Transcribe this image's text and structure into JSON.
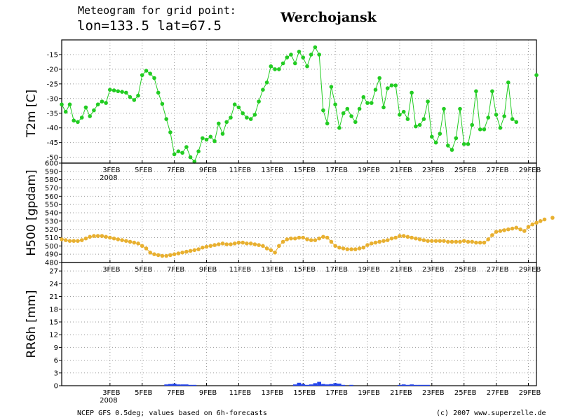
{
  "header": {
    "label": "Meteogram for grid point:",
    "coords": "lon=133.5 lat=67.5",
    "location": "Werchojansk"
  },
  "footer": {
    "source": "NCEP GFS 0.5deg; values based on 6h-forecasts",
    "copyright": "(c) 2007 www.superzelle.de"
  },
  "colors": {
    "temperature": "#22cc22",
    "geopotential": "#e8b030",
    "precipitation": "#2244ee",
    "grid": "#999999"
  },
  "chart_data": [
    {
      "type": "line",
      "ylabel": "T2m [C]",
      "ylim": [
        -52,
        -10
      ],
      "yticks": [
        -50,
        -45,
        -40,
        -35,
        -30,
        -25,
        -20,
        -15
      ],
      "xlim": [
        0,
        118
      ],
      "xticks": [
        {
          "x": 12,
          "label": "3FEB"
        },
        {
          "x": 20,
          "label": "5FEB"
        },
        {
          "x": 28,
          "label": "7FEB"
        },
        {
          "x": 36,
          "label": "9FEB"
        },
        {
          "x": 44,
          "label": "11FEB"
        },
        {
          "x": 52,
          "label": "13FEB"
        },
        {
          "x": 60,
          "label": "15FEB"
        },
        {
          "x": 68,
          "label": "17FEB"
        },
        {
          "x": 76,
          "label": "19FEB"
        },
        {
          "x": 84,
          "label": "21FEB"
        },
        {
          "x": 92,
          "label": "23FEB"
        },
        {
          "x": 100,
          "label": "25FEB"
        },
        {
          "x": 108,
          "label": "27FEB"
        },
        {
          "x": 116,
          "label": "29FEB"
        }
      ],
      "year_label": "2008",
      "grid": true,
      "values": [
        -32,
        -34.5,
        -32,
        -37.5,
        -38,
        -36.5,
        -33,
        -36,
        -34,
        -32,
        -31,
        -31.5,
        -27,
        -27.2,
        -27.5,
        -27.7,
        -28,
        -29.5,
        -30.5,
        -29,
        -22,
        -20.5,
        -21.5,
        -23,
        -28,
        -31.8,
        -37,
        -41.5,
        -49,
        -48,
        -48.5,
        -46.5,
        -50,
        -51.5,
        -48,
        -43.5,
        -44,
        -43,
        -44.5,
        -38.5,
        -42,
        -38,
        -36.5,
        -32,
        -33,
        -35,
        -36.5,
        -37,
        -35.5,
        -31,
        -27,
        -24.5,
        -19,
        -20,
        -20,
        -18,
        -16,
        -15,
        -18,
        -14,
        -16,
        -19,
        -15,
        -12.5,
        -15,
        -34,
        -38.5,
        -26,
        -32,
        -40,
        -35,
        -33.5,
        -36,
        -38,
        -33.5,
        -29.5,
        -31.5,
        -31.5,
        -27,
        -23,
        -33,
        -26.5,
        -25.5,
        -25.5,
        -35.5,
        -34.5,
        -37,
        -28,
        -39.5,
        -39,
        -37,
        -31,
        -43,
        -45,
        -42,
        -33.5,
        -46,
        -47.5,
        -43.5,
        -33.5,
        -45.5,
        -45.5,
        -39,
        -27.5,
        -40.5,
        -40.5,
        -36.5,
        -27.5,
        -35.5,
        -40,
        -36,
        -24.5,
        -37,
        -38,
        null,
        null,
        null,
        null,
        -22
      ]
    },
    {
      "type": "line",
      "ylabel": "H500 [gpdam]",
      "ylim": [
        480,
        600
      ],
      "yticks": [
        480,
        490,
        500,
        510,
        520,
        530,
        540,
        550,
        560,
        570,
        580,
        590,
        600
      ],
      "grid": true,
      "values": [
        508,
        507,
        506,
        506,
        506,
        507,
        509,
        511,
        512,
        512,
        512,
        511,
        510,
        509,
        508,
        507,
        506,
        505,
        504,
        503,
        500,
        497,
        492,
        490,
        489,
        488,
        488,
        489,
        490,
        491,
        492,
        493,
        494,
        495,
        496,
        498,
        499,
        500,
        501,
        502,
        503,
        502,
        502,
        503,
        504,
        504,
        503,
        503,
        502,
        501,
        500,
        497,
        495,
        492,
        500,
        505,
        508,
        509,
        509,
        510,
        510,
        508,
        507,
        507,
        509,
        511,
        510,
        505,
        500,
        498,
        497,
        496,
        496,
        496,
        497,
        498,
        501,
        503,
        504,
        505,
        506,
        507,
        509,
        510,
        512,
        512,
        511,
        510,
        509,
        508,
        507,
        506,
        506,
        506,
        506,
        506,
        505,
        505,
        505,
        505,
        506,
        505,
        505,
        504,
        504,
        504,
        508,
        513,
        517,
        518,
        519,
        520,
        521,
        522,
        520,
        518,
        523,
        526,
        528,
        530,
        532,
        null,
        534
      ]
    },
    {
      "type": "bar",
      "ylabel": "RR6h [mm]",
      "ylim": [
        0,
        29
      ],
      "yticks": [
        0,
        3,
        6,
        9,
        12,
        15,
        18,
        21,
        24,
        27
      ],
      "grid": true,
      "bars": [
        {
          "x": 26,
          "value": 0.3
        },
        {
          "x": 27,
          "value": 0.4
        },
        {
          "x": 28,
          "value": 0.5
        },
        {
          "x": 29,
          "value": 0.3
        },
        {
          "x": 30,
          "value": 0.3
        },
        {
          "x": 31,
          "value": 0.3
        },
        {
          "x": 32,
          "value": 0.2
        },
        {
          "x": 33,
          "value": 0.2
        },
        {
          "x": 58,
          "value": 0.3
        },
        {
          "x": 59,
          "value": 0.7
        },
        {
          "x": 60,
          "value": 0.4
        },
        {
          "x": 61,
          "value": 0.2
        },
        {
          "x": 62,
          "value": 0.3
        },
        {
          "x": 63,
          "value": 0.6
        },
        {
          "x": 64,
          "value": 0.9
        },
        {
          "x": 65,
          "value": 0.4
        },
        {
          "x": 66,
          "value": 0.3
        },
        {
          "x": 67,
          "value": 0.4
        },
        {
          "x": 68,
          "value": 0.6
        },
        {
          "x": 69,
          "value": 0.5
        },
        {
          "x": 70,
          "value": 0.2
        },
        {
          "x": 72,
          "value": 0.2
        },
        {
          "x": 84,
          "value": 0.2
        },
        {
          "x": 85,
          "value": 0.3
        },
        {
          "x": 86,
          "value": 0.2
        },
        {
          "x": 87,
          "value": 0.3
        },
        {
          "x": 88,
          "value": 0.2
        },
        {
          "x": 89,
          "value": 0.2
        },
        {
          "x": 90,
          "value": 0.2
        },
        {
          "x": 91,
          "value": 0.2
        }
      ]
    }
  ]
}
